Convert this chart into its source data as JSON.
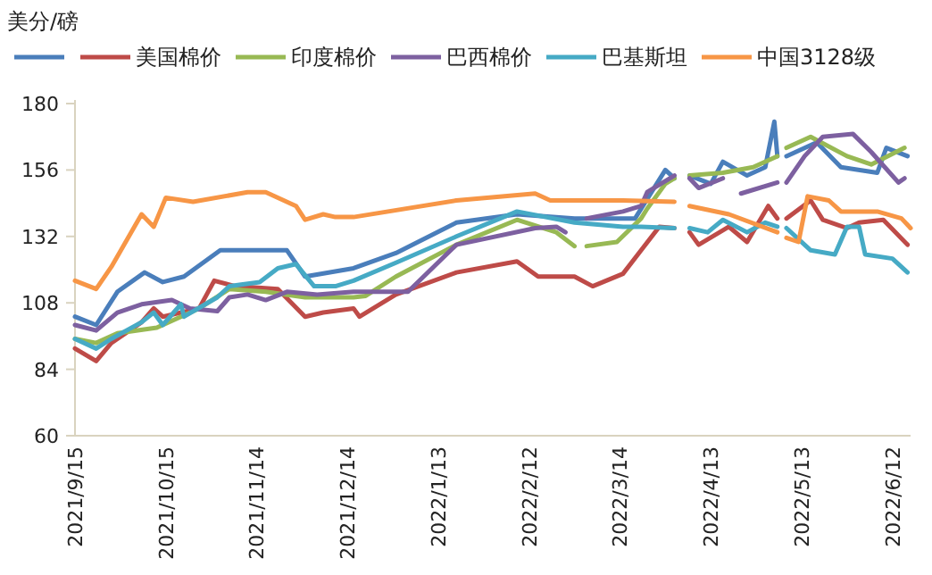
{
  "chart_data": {
    "type": "line",
    "ylabel": "美分/磅",
    "legend": "top",
    "line_style": "solid",
    "marker": "none",
    "grid": false,
    "xlim": [
      "2021-09-15",
      "2022-06-18"
    ],
    "xticks": [
      {
        "value": "2021-09-15",
        "label": "2021/9/15"
      },
      {
        "value": "2021-10-15",
        "label": "2021/10/15"
      },
      {
        "value": "2021-11-14",
        "label": "2021/11/14"
      },
      {
        "value": "2021-12-14",
        "label": "2021/12/14"
      },
      {
        "value": "2022-01-13",
        "label": "2022/1/13"
      },
      {
        "value": "2022-02-12",
        "label": "2022/2/12"
      },
      {
        "value": "2022-03-14",
        "label": "2022/3/14"
      },
      {
        "value": "2022-04-13",
        "label": "2022/4/13"
      },
      {
        "value": "2022-05-13",
        "label": "2022/5/13"
      },
      {
        "value": "2022-06-12",
        "label": "2022/6/12"
      }
    ],
    "ylim": [
      60,
      180
    ],
    "yticks": [
      60,
      84,
      108,
      132,
      156,
      180
    ],
    "series": [
      {
        "color": "#4a7ebb",
        "x": [
          "2021-09-15",
          "2021-09-22",
          "2021-09-29",
          "2021-10-08",
          "2021-10-14",
          "2021-10-21",
          "2021-11-02",
          "2021-11-13",
          "2021-11-24",
          "2021-11-30",
          "2021-12-16",
          "2021-12-30",
          "2022-01-19",
          "2022-02-08",
          "2022-02-27",
          "2022-03-19",
          "2022-03-29",
          "2022-04-01",
          "2022-04-03",
          "2022-04-06",
          "2022-04-13",
          "2022-04-17",
          "2022-04-25",
          "2022-05-01",
          "2022-05-04",
          "2022-05-05",
          "2022-05-06",
          "2022-05-08",
          "2022-05-18",
          "2022-05-26",
          "2022-06-07",
          "2022-06-10",
          "2022-06-17"
        ],
        "values": [
          103,
          100,
          112,
          119,
          115.5,
          117.5,
          127,
          127,
          127,
          117.5,
          120.5,
          126,
          137,
          140,
          138.5,
          138.5,
          156,
          153,
          null,
          154,
          151,
          159,
          154,
          157,
          173.5,
          161,
          null,
          161,
          166,
          157,
          155,
          164,
          161
        ]
      },
      {
        "name": "美国棉价",
        "color": "#be4b48",
        "x": [
          "2021-09-15",
          "2021-09-22",
          "2021-09-27",
          "2021-10-07",
          "2021-10-11",
          "2021-10-14",
          "2021-10-26",
          "2021-10-31",
          "2021-11-07",
          "2021-11-21",
          "2021-11-30",
          "2021-12-06",
          "2021-12-16",
          "2021-12-18",
          "2021-12-30",
          "2022-01-19",
          "2022-02-08",
          "2022-02-15",
          "2022-02-27",
          "2022-03-05",
          "2022-03-15",
          "2022-03-21",
          "2022-03-27",
          "2022-04-01",
          "2022-04-03",
          "2022-04-06",
          "2022-04-09",
          "2022-04-19",
          "2022-04-25",
          "2022-05-02",
          "2022-05-05",
          "2022-05-06",
          "2022-05-08",
          "2022-05-16",
          "2022-05-20",
          "2022-05-28",
          "2022-06-01",
          "2022-06-09",
          "2022-06-17"
        ],
        "values": [
          91.5,
          87,
          93.5,
          101,
          106,
          103,
          106,
          116,
          114,
          113,
          103,
          104.5,
          106,
          103,
          111,
          119,
          123,
          117.5,
          117.5,
          114,
          118.5,
          127,
          135.5,
          135,
          null,
          133.5,
          129,
          135.5,
          130,
          143,
          138.5,
          null,
          138.5,
          145,
          138,
          135,
          137,
          138,
          129
        ]
      },
      {
        "name": "印度棉价",
        "color": "#98b954",
        "x": [
          "2021-09-15",
          "2021-09-22",
          "2021-09-29",
          "2021-10-12",
          "2021-10-26",
          "2021-11-05",
          "2021-11-17",
          "2021-11-30",
          "2021-12-16",
          "2021-12-20",
          "2021-12-30",
          "2022-01-19",
          "2022-02-08",
          "2022-02-21",
          "2022-02-27",
          "2022-03-01",
          "2022-03-03",
          "2022-03-13",
          "2022-03-21",
          "2022-03-23",
          "2022-03-29",
          "2022-04-01",
          "2022-04-03",
          "2022-04-06",
          "2022-04-17",
          "2022-04-27",
          "2022-05-05",
          "2022-05-06",
          "2022-05-08",
          "2022-05-16",
          "2022-05-28",
          "2022-06-05",
          "2022-06-16"
        ],
        "values": [
          95,
          93.5,
          97,
          99,
          106,
          113,
          112,
          110,
          110,
          110.5,
          117.5,
          129,
          138,
          133.5,
          128.5,
          null,
          128.5,
          130,
          138.5,
          142,
          151,
          153,
          null,
          154,
          155,
          157,
          161,
          null,
          164,
          168,
          161,
          158,
          164
        ]
      },
      {
        "name": "巴西棉价",
        "color": "#7d60a0",
        "x": [
          "2021-09-15",
          "2021-09-22",
          "2021-09-29",
          "2021-10-07",
          "2021-10-17",
          "2021-10-23",
          "2021-11-01",
          "2021-11-05",
          "2021-11-11",
          "2021-11-17",
          "2021-11-24",
          "2021-12-04",
          "2021-12-16",
          "2021-12-20",
          "2022-01-03",
          "2022-01-19",
          "2022-02-14",
          "2022-02-21",
          "2022-02-24",
          "2022-02-26",
          "2022-03-03",
          "2022-03-15",
          "2022-03-21",
          "2022-03-23",
          "2022-04-01",
          "2022-04-03",
          "2022-04-06",
          "2022-04-09",
          "2022-04-17",
          "2022-04-20",
          "2022-04-23",
          "2022-05-05",
          "2022-05-06",
          "2022-05-08",
          "2022-05-14",
          "2022-05-20",
          "2022-05-30",
          "2022-06-05",
          "2022-06-14",
          "2022-06-16"
        ],
        "values": [
          100,
          98,
          104.5,
          107.5,
          109,
          106,
          105,
          110,
          111,
          109,
          112,
          111,
          112,
          112,
          112,
          129,
          135,
          135.5,
          133.5,
          null,
          138.5,
          141,
          143,
          148,
          154,
          null,
          153,
          149.5,
          153,
          null,
          147.5,
          151.5,
          null,
          151.5,
          161,
          168,
          169,
          162.5,
          151.5,
          153
        ]
      },
      {
        "name": "巴基斯坦",
        "color": "#46aac5",
        "x": [
          "2021-09-15",
          "2021-09-22",
          "2021-09-27",
          "2021-10-07",
          "2021-10-11",
          "2021-10-14",
          "2021-10-20",
          "2021-10-21",
          "2021-11-01",
          "2021-11-05",
          "2021-11-15",
          "2021-11-21",
          "2021-11-27",
          "2021-12-03",
          "2021-12-10",
          "2021-12-16",
          "2021-12-30",
          "2022-01-19",
          "2022-02-08",
          "2022-02-27",
          "2022-03-15",
          "2022-03-21",
          "2022-04-01",
          "2022-04-03",
          "2022-04-06",
          "2022-04-12",
          "2022-04-17",
          "2022-04-25",
          "2022-05-01",
          "2022-05-05",
          "2022-05-06",
          "2022-05-08",
          "2022-05-16",
          "2022-05-24",
          "2022-05-28",
          "2022-06-01",
          "2022-06-03",
          "2022-06-12",
          "2022-06-17"
        ],
        "values": [
          95,
          91.5,
          95,
          101,
          104.5,
          100,
          107.5,
          103,
          110,
          114,
          115.5,
          120.5,
          122,
          114,
          114,
          116,
          122.5,
          132,
          141,
          137,
          135.5,
          135.5,
          135,
          null,
          135,
          133.5,
          138,
          133.5,
          137,
          135.5,
          null,
          135,
          127,
          125.5,
          135.5,
          135.5,
          125.5,
          124,
          119
        ]
      },
      {
        "name": "中国3128级",
        "color": "#f79646",
        "x": [
          "2021-09-15",
          "2021-09-22",
          "2021-09-27",
          "2021-10-07",
          "2021-10-11",
          "2021-10-15",
          "2021-10-24",
          "2021-11-11",
          "2021-11-17",
          "2021-11-27",
          "2021-11-30",
          "2021-12-06",
          "2021-12-10",
          "2021-12-16",
          "2022-01-19",
          "2022-02-14",
          "2022-02-19",
          "2022-03-15",
          "2022-04-01",
          "2022-04-03",
          "2022-04-06",
          "2022-04-19",
          "2022-05-05",
          "2022-05-06",
          "2022-05-08",
          "2022-05-12",
          "2022-05-15",
          "2022-05-22",
          "2022-05-26",
          "2022-06-07",
          "2022-06-15",
          "2022-06-18"
        ],
        "values": [
          116,
          113,
          121,
          140,
          135.5,
          146,
          144.5,
          148,
          148,
          143,
          138,
          140,
          139,
          139,
          145,
          147.5,
          145,
          145,
          144.5,
          null,
          143,
          140,
          133.5,
          null,
          131.5,
          130,
          146.5,
          145,
          141,
          141,
          138.5,
          135
        ]
      }
    ]
  }
}
